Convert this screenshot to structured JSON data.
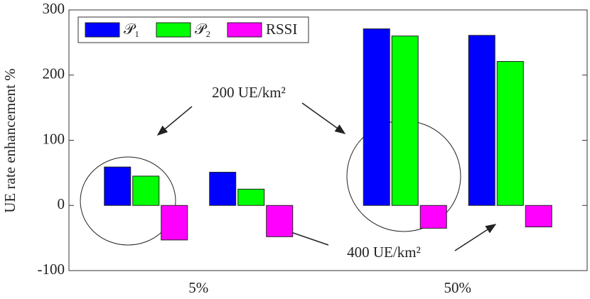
{
  "chart_data": {
    "type": "bar",
    "y_label": "UE rate enhancement %",
    "categories": [
      "5%",
      "50%"
    ],
    "series": [
      {
        "name": "𝒫₁",
        "color": "#0000ff",
        "values": [
          [
            59,
            51
          ],
          [
            271,
            261
          ]
        ]
      },
      {
        "name": "𝒫₂",
        "color": "#00ff00",
        "values": [
          [
            45,
            25
          ],
          [
            260,
            221
          ]
        ]
      },
      {
        "name": "RSSI",
        "color": "#ff00ff",
        "values": [
          [
            -53,
            -48
          ],
          [
            -35,
            -33
          ]
        ]
      }
    ],
    "annotations": [
      "200 UE/km²",
      "400 UE/km²"
    ],
    "ylim": [
      -100,
      300
    ],
    "yticks": [
      -100,
      0,
      100,
      200,
      300
    ],
    "legend": "upper left"
  }
}
